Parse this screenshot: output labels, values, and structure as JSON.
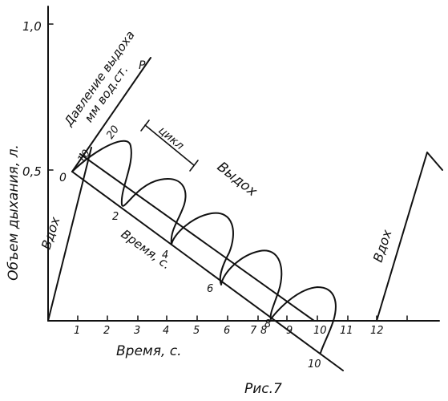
{
  "figure": {
    "caption": "Рис.7",
    "y_axis": {
      "label": "Объем дыхания, л.",
      "ticks": [
        "1,0",
        "0,5"
      ]
    },
    "x_axis": {
      "label": "Время, с.",
      "ticks": [
        "1",
        "2",
        "3",
        "4",
        "5",
        "6",
        "7",
        "8",
        "9",
        "10",
        "11",
        "12"
      ]
    },
    "pressure_axis": {
      "label_line1": "Давление выдоха",
      "label_line2": "мм вод.ст.",
      "end_letter": "P",
      "ticks": [
        "0",
        "10",
        "20"
      ]
    },
    "oblique_time_axis": {
      "label": "Время, с.",
      "ticks": [
        "2",
        "4",
        "6",
        "8",
        "10"
      ]
    },
    "annotations": {
      "inhale_left": "Вдох",
      "inhale_right": "Вдох",
      "exhale": "Выдох",
      "cycle": "цикл"
    }
  }
}
